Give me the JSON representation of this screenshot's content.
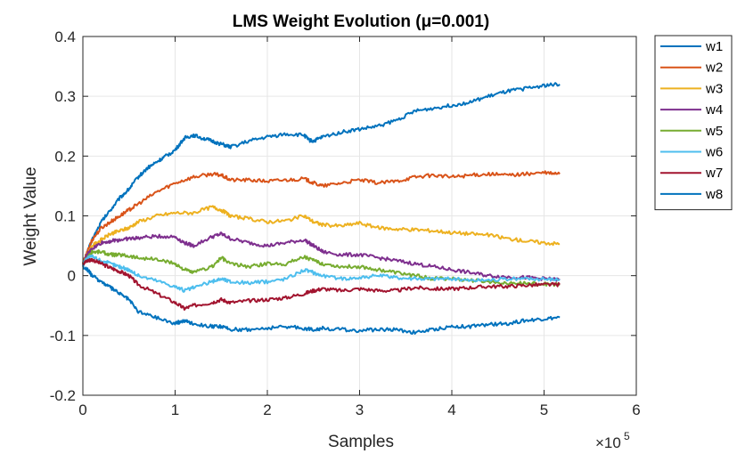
{
  "chart_data": {
    "type": "line",
    "title": "LMS Weight Evolution (μ=0.001)",
    "xlabel": "Samples",
    "ylabel": "Weight Value",
    "x_exponent_base": "×10",
    "x_exponent": "5",
    "xlim": [
      0,
      6
    ],
    "ylim": [
      -0.2,
      0.4
    ],
    "x_ticks": [
      0,
      1,
      2,
      3,
      4,
      5,
      6
    ],
    "y_ticks": [
      -0.2,
      -0.1,
      0,
      0.1,
      0.2,
      0.3,
      0.4
    ],
    "x_tick_labels": [
      "0",
      "1",
      "2",
      "3",
      "4",
      "5",
      "6"
    ],
    "y_tick_labels": [
      "-0.2",
      "-0.1",
      "0",
      "0.1",
      "0.2",
      "0.3",
      "0.4"
    ],
    "grid": true,
    "legend_position": "outside-top-right",
    "series": [
      {
        "name": "w1",
        "color": "#0072BD",
        "x": [
          0,
          0.05,
          0.1,
          0.2,
          0.3,
          0.4,
          0.5,
          0.6,
          0.7,
          0.8,
          0.9,
          1.0,
          1.1,
          1.2,
          1.3,
          1.4,
          1.5,
          1.6,
          1.8,
          2.0,
          2.2,
          2.4,
          2.45,
          2.5,
          2.6,
          2.8,
          3.0,
          3.2,
          3.4,
          3.6,
          3.8,
          4.0,
          4.2,
          4.4,
          4.6,
          4.8,
          5.0,
          5.17
        ],
        "y": [
          0.02,
          0.04,
          0.06,
          0.09,
          0.11,
          0.13,
          0.145,
          0.165,
          0.18,
          0.19,
          0.2,
          0.21,
          0.23,
          0.235,
          0.23,
          0.225,
          0.22,
          0.215,
          0.225,
          0.232,
          0.237,
          0.235,
          0.227,
          0.225,
          0.232,
          0.24,
          0.245,
          0.25,
          0.26,
          0.275,
          0.28,
          0.285,
          0.29,
          0.3,
          0.308,
          0.313,
          0.318,
          0.32
        ]
      },
      {
        "name": "w2",
        "color": "#D95319",
        "x": [
          0,
          0.05,
          0.1,
          0.2,
          0.3,
          0.4,
          0.5,
          0.6,
          0.8,
          1.0,
          1.2,
          1.4,
          1.5,
          1.6,
          1.8,
          2.0,
          2.2,
          2.4,
          2.5,
          2.6,
          2.8,
          3.0,
          3.2,
          3.4,
          3.6,
          3.8,
          4.0,
          4.2,
          4.4,
          4.6,
          4.8,
          5.0,
          5.17
        ],
        "y": [
          0.02,
          0.04,
          0.06,
          0.08,
          0.09,
          0.1,
          0.11,
          0.12,
          0.14,
          0.155,
          0.165,
          0.17,
          0.168,
          0.16,
          0.16,
          0.158,
          0.16,
          0.162,
          0.155,
          0.15,
          0.155,
          0.16,
          0.155,
          0.158,
          0.165,
          0.168,
          0.165,
          0.168,
          0.17,
          0.168,
          0.17,
          0.172,
          0.17
        ]
      },
      {
        "name": "w3",
        "color": "#EDB120",
        "x": [
          0,
          0.05,
          0.1,
          0.2,
          0.3,
          0.4,
          0.5,
          0.6,
          0.8,
          1.0,
          1.2,
          1.4,
          1.5,
          1.6,
          1.8,
          2.0,
          2.2,
          2.4,
          2.5,
          2.6,
          2.8,
          3.0,
          3.2,
          3.4,
          3.6,
          3.8,
          4.0,
          4.2,
          4.4,
          4.6,
          4.8,
          5.0,
          5.17
        ],
        "y": [
          0.02,
          0.035,
          0.05,
          0.06,
          0.07,
          0.075,
          0.08,
          0.09,
          0.1,
          0.105,
          0.105,
          0.115,
          0.11,
          0.1,
          0.095,
          0.09,
          0.092,
          0.1,
          0.09,
          0.085,
          0.083,
          0.088,
          0.08,
          0.078,
          0.077,
          0.075,
          0.072,
          0.07,
          0.068,
          0.062,
          0.058,
          0.055,
          0.053
        ]
      },
      {
        "name": "w4",
        "color": "#7E2F8E",
        "x": [
          0,
          0.05,
          0.1,
          0.2,
          0.3,
          0.4,
          0.5,
          0.6,
          0.8,
          1.0,
          1.1,
          1.2,
          1.4,
          1.5,
          1.6,
          1.8,
          2.0,
          2.2,
          2.4,
          2.5,
          2.6,
          2.8,
          3.0,
          3.2,
          3.4,
          3.6,
          3.8,
          4.0,
          4.2,
          4.4,
          4.6,
          4.8,
          5.0,
          5.17
        ],
        "y": [
          0.02,
          0.035,
          0.045,
          0.055,
          0.058,
          0.06,
          0.062,
          0.063,
          0.066,
          0.065,
          0.055,
          0.05,
          0.065,
          0.07,
          0.062,
          0.055,
          0.05,
          0.055,
          0.06,
          0.05,
          0.04,
          0.035,
          0.035,
          0.03,
          0.025,
          0.02,
          0.015,
          0.01,
          0.005,
          0.0,
          -0.002,
          -0.003,
          -0.005,
          -0.007
        ]
      },
      {
        "name": "w5",
        "color": "#77AC30",
        "x": [
          0,
          0.05,
          0.1,
          0.2,
          0.3,
          0.4,
          0.5,
          0.6,
          0.8,
          1.0,
          1.1,
          1.2,
          1.4,
          1.5,
          1.6,
          1.8,
          2.0,
          2.2,
          2.4,
          2.5,
          2.6,
          2.8,
          3.0,
          3.2,
          3.4,
          3.6,
          3.8,
          4.0,
          4.2,
          4.4,
          4.6,
          4.8,
          5.0,
          5.17
        ],
        "y": [
          0.02,
          0.03,
          0.04,
          0.04,
          0.035,
          0.035,
          0.033,
          0.03,
          0.027,
          0.02,
          0.01,
          0.005,
          0.015,
          0.03,
          0.02,
          0.015,
          0.02,
          0.02,
          0.032,
          0.025,
          0.02,
          0.015,
          0.015,
          0.01,
          0.005,
          0.0,
          -0.005,
          -0.005,
          -0.008,
          -0.01,
          -0.012,
          -0.013,
          -0.014,
          -0.015
        ]
      },
      {
        "name": "w6",
        "color": "#4DBEEE",
        "x": [
          0,
          0.05,
          0.1,
          0.2,
          0.3,
          0.4,
          0.5,
          0.6,
          0.8,
          1.0,
          1.1,
          1.2,
          1.4,
          1.5,
          1.6,
          1.8,
          2.0,
          2.2,
          2.4,
          2.5,
          2.6,
          2.8,
          3.0,
          3.2,
          3.4,
          3.6,
          3.8,
          4.0,
          4.2,
          4.4,
          4.6,
          4.8,
          5.0,
          5.17
        ],
        "y": [
          0.02,
          0.03,
          0.032,
          0.025,
          0.02,
          0.015,
          0.01,
          0.0,
          -0.008,
          -0.018,
          -0.025,
          -0.02,
          -0.01,
          -0.005,
          -0.01,
          -0.012,
          -0.01,
          -0.005,
          0.01,
          0.005,
          0.0,
          -0.005,
          -0.003,
          0.0,
          -0.003,
          -0.005,
          -0.005,
          -0.005,
          -0.008,
          -0.007,
          -0.006,
          -0.005,
          -0.006,
          -0.006
        ]
      },
      {
        "name": "w7",
        "color": "#A2142F",
        "x": [
          0,
          0.05,
          0.1,
          0.2,
          0.3,
          0.4,
          0.5,
          0.6,
          0.8,
          1.0,
          1.1,
          1.2,
          1.4,
          1.5,
          1.6,
          1.8,
          2.0,
          2.2,
          2.4,
          2.5,
          2.6,
          2.8,
          3.0,
          3.2,
          3.4,
          3.6,
          3.8,
          4.0,
          4.2,
          4.4,
          4.6,
          4.8,
          5.0,
          5.17
        ],
        "y": [
          0.02,
          0.025,
          0.027,
          0.02,
          0.013,
          0.007,
          0.0,
          -0.015,
          -0.03,
          -0.045,
          -0.055,
          -0.05,
          -0.045,
          -0.04,
          -0.045,
          -0.042,
          -0.04,
          -0.037,
          -0.03,
          -0.025,
          -0.022,
          -0.025,
          -0.022,
          -0.025,
          -0.025,
          -0.02,
          -0.022,
          -0.022,
          -0.02,
          -0.018,
          -0.018,
          -0.016,
          -0.015,
          -0.015
        ]
      },
      {
        "name": "w8",
        "color": "#0072BD",
        "x": [
          0,
          0.05,
          0.1,
          0.2,
          0.3,
          0.4,
          0.5,
          0.6,
          0.8,
          1.0,
          1.1,
          1.2,
          1.4,
          1.5,
          1.6,
          1.8,
          2.0,
          2.2,
          2.4,
          2.5,
          2.6,
          2.8,
          3.0,
          3.2,
          3.4,
          3.6,
          3.8,
          4.0,
          4.2,
          4.4,
          4.6,
          4.8,
          5.0,
          5.17
        ],
        "y": [
          0.015,
          0.01,
          0.0,
          -0.01,
          -0.02,
          -0.03,
          -0.04,
          -0.06,
          -0.07,
          -0.08,
          -0.075,
          -0.08,
          -0.085,
          -0.085,
          -0.09,
          -0.09,
          -0.088,
          -0.085,
          -0.088,
          -0.09,
          -0.088,
          -0.09,
          -0.092,
          -0.09,
          -0.09,
          -0.095,
          -0.09,
          -0.085,
          -0.085,
          -0.082,
          -0.08,
          -0.075,
          -0.072,
          -0.07
        ]
      }
    ]
  }
}
